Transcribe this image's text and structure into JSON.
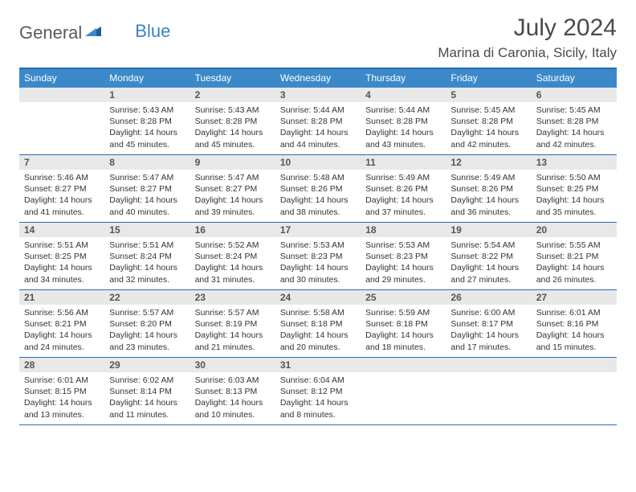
{
  "logo": {
    "text1": "General",
    "text2": "Blue"
  },
  "title": "July 2024",
  "location": "Marina di Caronia, Sicily, Italy",
  "colors": {
    "header_bg": "#3b89c9",
    "border": "#2a6db0",
    "daynum_bg": "#e8e8e8",
    "text": "#333333",
    "logo_gray": "#5a5a5a",
    "logo_blue": "#3b82c4",
    "page_bg": "#ffffff"
  },
  "typography": {
    "title_fontsize": 30,
    "location_fontsize": 17,
    "weekday_fontsize": 12,
    "daynum_fontsize": 12,
    "body_fontsize": 10.5
  },
  "weekdays": [
    "Sunday",
    "Monday",
    "Tuesday",
    "Wednesday",
    "Thursday",
    "Friday",
    "Saturday"
  ],
  "weeks": [
    [
      null,
      {
        "n": "1",
        "sr": "Sunrise: 5:43 AM",
        "ss": "Sunset: 8:28 PM",
        "d1": "Daylight: 14 hours",
        "d2": "and 45 minutes."
      },
      {
        "n": "2",
        "sr": "Sunrise: 5:43 AM",
        "ss": "Sunset: 8:28 PM",
        "d1": "Daylight: 14 hours",
        "d2": "and 45 minutes."
      },
      {
        "n": "3",
        "sr": "Sunrise: 5:44 AM",
        "ss": "Sunset: 8:28 PM",
        "d1": "Daylight: 14 hours",
        "d2": "and 44 minutes."
      },
      {
        "n": "4",
        "sr": "Sunrise: 5:44 AM",
        "ss": "Sunset: 8:28 PM",
        "d1": "Daylight: 14 hours",
        "d2": "and 43 minutes."
      },
      {
        "n": "5",
        "sr": "Sunrise: 5:45 AM",
        "ss": "Sunset: 8:28 PM",
        "d1": "Daylight: 14 hours",
        "d2": "and 42 minutes."
      },
      {
        "n": "6",
        "sr": "Sunrise: 5:45 AM",
        "ss": "Sunset: 8:28 PM",
        "d1": "Daylight: 14 hours",
        "d2": "and 42 minutes."
      }
    ],
    [
      {
        "n": "7",
        "sr": "Sunrise: 5:46 AM",
        "ss": "Sunset: 8:27 PM",
        "d1": "Daylight: 14 hours",
        "d2": "and 41 minutes."
      },
      {
        "n": "8",
        "sr": "Sunrise: 5:47 AM",
        "ss": "Sunset: 8:27 PM",
        "d1": "Daylight: 14 hours",
        "d2": "and 40 minutes."
      },
      {
        "n": "9",
        "sr": "Sunrise: 5:47 AM",
        "ss": "Sunset: 8:27 PM",
        "d1": "Daylight: 14 hours",
        "d2": "and 39 minutes."
      },
      {
        "n": "10",
        "sr": "Sunrise: 5:48 AM",
        "ss": "Sunset: 8:26 PM",
        "d1": "Daylight: 14 hours",
        "d2": "and 38 minutes."
      },
      {
        "n": "11",
        "sr": "Sunrise: 5:49 AM",
        "ss": "Sunset: 8:26 PM",
        "d1": "Daylight: 14 hours",
        "d2": "and 37 minutes."
      },
      {
        "n": "12",
        "sr": "Sunrise: 5:49 AM",
        "ss": "Sunset: 8:26 PM",
        "d1": "Daylight: 14 hours",
        "d2": "and 36 minutes."
      },
      {
        "n": "13",
        "sr": "Sunrise: 5:50 AM",
        "ss": "Sunset: 8:25 PM",
        "d1": "Daylight: 14 hours",
        "d2": "and 35 minutes."
      }
    ],
    [
      {
        "n": "14",
        "sr": "Sunrise: 5:51 AM",
        "ss": "Sunset: 8:25 PM",
        "d1": "Daylight: 14 hours",
        "d2": "and 34 minutes."
      },
      {
        "n": "15",
        "sr": "Sunrise: 5:51 AM",
        "ss": "Sunset: 8:24 PM",
        "d1": "Daylight: 14 hours",
        "d2": "and 32 minutes."
      },
      {
        "n": "16",
        "sr": "Sunrise: 5:52 AM",
        "ss": "Sunset: 8:24 PM",
        "d1": "Daylight: 14 hours",
        "d2": "and 31 minutes."
      },
      {
        "n": "17",
        "sr": "Sunrise: 5:53 AM",
        "ss": "Sunset: 8:23 PM",
        "d1": "Daylight: 14 hours",
        "d2": "and 30 minutes."
      },
      {
        "n": "18",
        "sr": "Sunrise: 5:53 AM",
        "ss": "Sunset: 8:23 PM",
        "d1": "Daylight: 14 hours",
        "d2": "and 29 minutes."
      },
      {
        "n": "19",
        "sr": "Sunrise: 5:54 AM",
        "ss": "Sunset: 8:22 PM",
        "d1": "Daylight: 14 hours",
        "d2": "and 27 minutes."
      },
      {
        "n": "20",
        "sr": "Sunrise: 5:55 AM",
        "ss": "Sunset: 8:21 PM",
        "d1": "Daylight: 14 hours",
        "d2": "and 26 minutes."
      }
    ],
    [
      {
        "n": "21",
        "sr": "Sunrise: 5:56 AM",
        "ss": "Sunset: 8:21 PM",
        "d1": "Daylight: 14 hours",
        "d2": "and 24 minutes."
      },
      {
        "n": "22",
        "sr": "Sunrise: 5:57 AM",
        "ss": "Sunset: 8:20 PM",
        "d1": "Daylight: 14 hours",
        "d2": "and 23 minutes."
      },
      {
        "n": "23",
        "sr": "Sunrise: 5:57 AM",
        "ss": "Sunset: 8:19 PM",
        "d1": "Daylight: 14 hours",
        "d2": "and 21 minutes."
      },
      {
        "n": "24",
        "sr": "Sunrise: 5:58 AM",
        "ss": "Sunset: 8:18 PM",
        "d1": "Daylight: 14 hours",
        "d2": "and 20 minutes."
      },
      {
        "n": "25",
        "sr": "Sunrise: 5:59 AM",
        "ss": "Sunset: 8:18 PM",
        "d1": "Daylight: 14 hours",
        "d2": "and 18 minutes."
      },
      {
        "n": "26",
        "sr": "Sunrise: 6:00 AM",
        "ss": "Sunset: 8:17 PM",
        "d1": "Daylight: 14 hours",
        "d2": "and 17 minutes."
      },
      {
        "n": "27",
        "sr": "Sunrise: 6:01 AM",
        "ss": "Sunset: 8:16 PM",
        "d1": "Daylight: 14 hours",
        "d2": "and 15 minutes."
      }
    ],
    [
      {
        "n": "28",
        "sr": "Sunrise: 6:01 AM",
        "ss": "Sunset: 8:15 PM",
        "d1": "Daylight: 14 hours",
        "d2": "and 13 minutes."
      },
      {
        "n": "29",
        "sr": "Sunrise: 6:02 AM",
        "ss": "Sunset: 8:14 PM",
        "d1": "Daylight: 14 hours",
        "d2": "and 11 minutes."
      },
      {
        "n": "30",
        "sr": "Sunrise: 6:03 AM",
        "ss": "Sunset: 8:13 PM",
        "d1": "Daylight: 14 hours",
        "d2": "and 10 minutes."
      },
      {
        "n": "31",
        "sr": "Sunrise: 6:04 AM",
        "ss": "Sunset: 8:12 PM",
        "d1": "Daylight: 14 hours",
        "d2": "and 8 minutes."
      },
      null,
      null,
      null
    ]
  ]
}
